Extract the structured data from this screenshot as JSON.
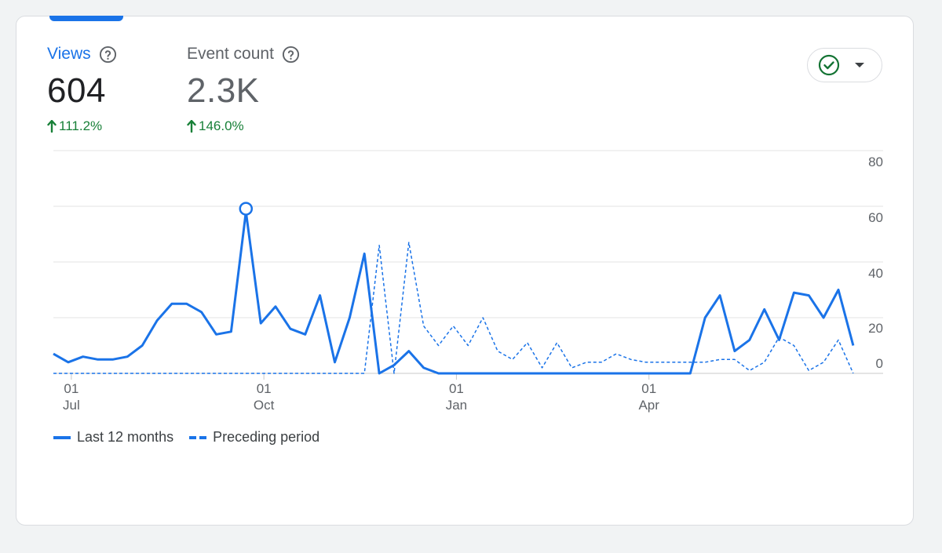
{
  "metrics": [
    {
      "label": "Views",
      "value": "604",
      "change": "111.2%",
      "selected": true
    },
    {
      "label": "Event count",
      "value": "2.3K",
      "change": "146.0%",
      "selected": false
    }
  ],
  "icons": {
    "help": "help-circle-icon",
    "status": "check-circle-icon",
    "dropdown": "caret-down-icon",
    "trend": "arrow-up-icon"
  },
  "colors": {
    "accent": "#1a73e8",
    "positive": "#188038",
    "status": "#137333",
    "grid": "#e0e0e0",
    "text_muted": "#5f6368"
  },
  "chart_data": {
    "type": "line",
    "x_tick_labels": [
      {
        "day": "01",
        "month": "Jul",
        "index": 1
      },
      {
        "day": "01",
        "month": "Oct",
        "index": 14
      },
      {
        "day": "01",
        "month": "Jan",
        "index": 27
      },
      {
        "day": "01",
        "month": "Apr",
        "index": 40
      }
    ],
    "y_ticks": [
      0,
      20,
      40,
      60,
      80
    ],
    "ylim": [
      0,
      80
    ],
    "xlim": [
      0,
      53
    ],
    "grid": true,
    "legend_position": "bottom-left",
    "highlight": {
      "series": 0,
      "index": 13
    },
    "series": [
      {
        "name": "Last 12 months",
        "style": "solid",
        "values": [
          7,
          4,
          6,
          5,
          5,
          6,
          10,
          19,
          25,
          25,
          22,
          14,
          15,
          58,
          18,
          24,
          16,
          14,
          28,
          4,
          20,
          43,
          0,
          3,
          8,
          2,
          0,
          0,
          0,
          0,
          0,
          0,
          0,
          0,
          0,
          0,
          0,
          0,
          0,
          0,
          0,
          0,
          0,
          0,
          20,
          28,
          8,
          12,
          23,
          12,
          29,
          28,
          20,
          30,
          10
        ]
      },
      {
        "name": "Preceding period",
        "style": "dashed",
        "values": [
          0,
          0,
          0,
          0,
          0,
          0,
          0,
          0,
          0,
          0,
          0,
          0,
          0,
          0,
          0,
          0,
          0,
          0,
          0,
          0,
          0,
          0,
          46,
          0,
          47,
          17,
          10,
          17,
          10,
          20,
          8,
          5,
          11,
          2,
          11,
          2,
          4,
          4,
          7,
          5,
          4,
          4,
          4,
          4,
          4,
          5,
          5,
          1,
          4,
          13,
          10,
          1,
          4,
          12,
          0
        ]
      }
    ]
  },
  "legend": {
    "items": [
      "Last 12 months",
      "Preceding period"
    ]
  }
}
